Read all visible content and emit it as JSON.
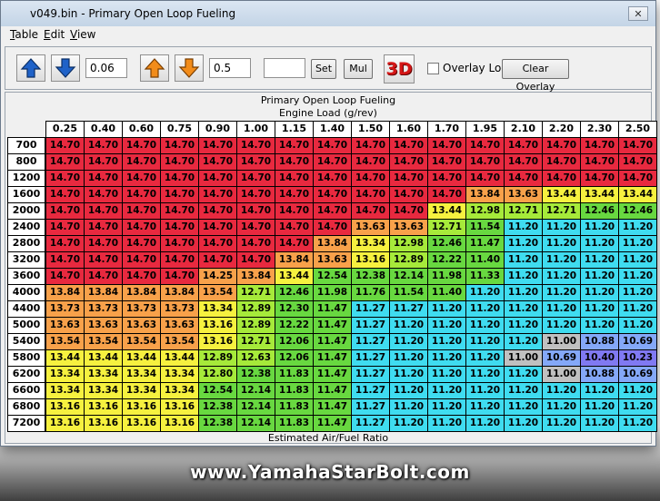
{
  "window": {
    "title": "v049.bin - Primary Open Loop Fueling",
    "close_glyph": "✕"
  },
  "menu": [
    {
      "u": "T",
      "rest": "able"
    },
    {
      "u": "E",
      "rest": "dit"
    },
    {
      "u": "V",
      "rest": "iew"
    }
  ],
  "toolbar": {
    "step_value": "0.06",
    "step_value2": "0.5",
    "set_value": "",
    "set_label": "Set",
    "mul_label": "Mul",
    "three_d_label": "3D",
    "overlay_log_label": "Overlay Log",
    "overlay_log_checked": false,
    "clear_overlay_label": "Clear Overlay"
  },
  "table": {
    "title": "Primary Open Loop Fueling",
    "x_axis_label": "Engine Load (g/rev)",
    "value_label": "Estimated Air/Fuel Ratio",
    "columns": [
      "0.25",
      "0.40",
      "0.60",
      "0.75",
      "0.90",
      "1.00",
      "1.15",
      "1.40",
      "1.50",
      "1.60",
      "1.70",
      "1.95",
      "2.10",
      "2.20",
      "2.30",
      "2.50"
    ],
    "rows": [
      "700",
      "800",
      "1200",
      "1600",
      "2000",
      "2400",
      "2800",
      "3200",
      "3600",
      "4000",
      "4400",
      "5000",
      "5400",
      "5800",
      "6200",
      "6600",
      "6800",
      "7200"
    ],
    "values": [
      [
        "14.70",
        "14.70",
        "14.70",
        "14.70",
        "14.70",
        "14.70",
        "14.70",
        "14.70",
        "14.70",
        "14.70",
        "14.70",
        "14.70",
        "14.70",
        "14.70",
        "14.70",
        "14.70"
      ],
      [
        "14.70",
        "14.70",
        "14.70",
        "14.70",
        "14.70",
        "14.70",
        "14.70",
        "14.70",
        "14.70",
        "14.70",
        "14.70",
        "14.70",
        "14.70",
        "14.70",
        "14.70",
        "14.70"
      ],
      [
        "14.70",
        "14.70",
        "14.70",
        "14.70",
        "14.70",
        "14.70",
        "14.70",
        "14.70",
        "14.70",
        "14.70",
        "14.70",
        "14.70",
        "14.70",
        "14.70",
        "14.70",
        "14.70"
      ],
      [
        "14.70",
        "14.70",
        "14.70",
        "14.70",
        "14.70",
        "14.70",
        "14.70",
        "14.70",
        "14.70",
        "14.70",
        "14.70",
        "13.84",
        "13.63",
        "13.44",
        "13.44",
        "13.44"
      ],
      [
        "14.70",
        "14.70",
        "14.70",
        "14.70",
        "14.70",
        "14.70",
        "14.70",
        "14.70",
        "14.70",
        "14.70",
        "13.44",
        "12.98",
        "12.71",
        "12.71",
        "12.46",
        "12.46"
      ],
      [
        "14.70",
        "14.70",
        "14.70",
        "14.70",
        "14.70",
        "14.70",
        "14.70",
        "14.70",
        "13.63",
        "13.63",
        "12.71",
        "11.54",
        "11.20",
        "11.20",
        "11.20",
        "11.20"
      ],
      [
        "14.70",
        "14.70",
        "14.70",
        "14.70",
        "14.70",
        "14.70",
        "14.70",
        "13.84",
        "13.34",
        "12.98",
        "12.46",
        "11.47",
        "11.20",
        "11.20",
        "11.20",
        "11.20"
      ],
      [
        "14.70",
        "14.70",
        "14.70",
        "14.70",
        "14.70",
        "14.70",
        "13.84",
        "13.63",
        "13.16",
        "12.89",
        "12.22",
        "11.40",
        "11.20",
        "11.20",
        "11.20",
        "11.20"
      ],
      [
        "14.70",
        "14.70",
        "14.70",
        "14.70",
        "14.25",
        "13.84",
        "13.44",
        "12.54",
        "12.38",
        "12.14",
        "11.98",
        "11.33",
        "11.20",
        "11.20",
        "11.20",
        "11.20"
      ],
      [
        "13.84",
        "13.84",
        "13.84",
        "13.84",
        "13.54",
        "12.71",
        "12.46",
        "11.98",
        "11.76",
        "11.54",
        "11.40",
        "11.20",
        "11.20",
        "11.20",
        "11.20",
        "11.20"
      ],
      [
        "13.73",
        "13.73",
        "13.73",
        "13.73",
        "13.34",
        "12.89",
        "12.30",
        "11.47",
        "11.27",
        "11.27",
        "11.20",
        "11.20",
        "11.20",
        "11.20",
        "11.20",
        "11.20"
      ],
      [
        "13.63",
        "13.63",
        "13.63",
        "13.63",
        "13.16",
        "12.89",
        "12.22",
        "11.47",
        "11.27",
        "11.20",
        "11.20",
        "11.20",
        "11.20",
        "11.20",
        "11.20",
        "11.20"
      ],
      [
        "13.54",
        "13.54",
        "13.54",
        "13.54",
        "13.16",
        "12.71",
        "12.06",
        "11.47",
        "11.27",
        "11.20",
        "11.20",
        "11.20",
        "11.20",
        "11.00",
        "10.88",
        "10.69"
      ],
      [
        "13.44",
        "13.44",
        "13.44",
        "13.44",
        "12.89",
        "12.63",
        "12.06",
        "11.47",
        "11.27",
        "11.20",
        "11.20",
        "11.20",
        "11.00",
        "10.69",
        "10.40",
        "10.23"
      ],
      [
        "13.34",
        "13.34",
        "13.34",
        "13.34",
        "12.80",
        "12.38",
        "11.83",
        "11.47",
        "11.27",
        "11.20",
        "11.20",
        "11.20",
        "11.20",
        "11.00",
        "10.88",
        "10.69"
      ],
      [
        "13.34",
        "13.34",
        "13.34",
        "13.34",
        "12.54",
        "12.14",
        "11.83",
        "11.47",
        "11.27",
        "11.20",
        "11.20",
        "11.20",
        "11.20",
        "11.20",
        "11.20",
        "11.20"
      ],
      [
        "13.16",
        "13.16",
        "13.16",
        "13.16",
        "12.38",
        "12.14",
        "11.83",
        "11.47",
        "11.27",
        "11.20",
        "11.20",
        "11.20",
        "11.20",
        "11.20",
        "11.20",
        "11.20"
      ],
      [
        "13.16",
        "13.16",
        "13.16",
        "13.16",
        "12.38",
        "12.14",
        "11.83",
        "11.47",
        "11.27",
        "11.20",
        "11.20",
        "11.20",
        "11.20",
        "11.20",
        "11.20",
        "11.20"
      ]
    ],
    "colors": {
      "red": "#e8293f",
      "orange": "#f8a14a",
      "yellow": "#f6f13f",
      "green": "#68d840",
      "lightgreen": "#a6ea3a",
      "cyan": "#3fdcf0",
      "gray": "#c0c0c0",
      "lightblue": "#84a8f8",
      "blue": "#8079f2"
    }
  },
  "icons": {
    "up_blue": "arrow-up-blue-icon",
    "down_blue": "arrow-down-blue-icon",
    "up_orange": "arrow-up-orange-icon",
    "down_orange": "arrow-down-orange-icon"
  },
  "watermark": "www.YamahaStarBolt.com"
}
